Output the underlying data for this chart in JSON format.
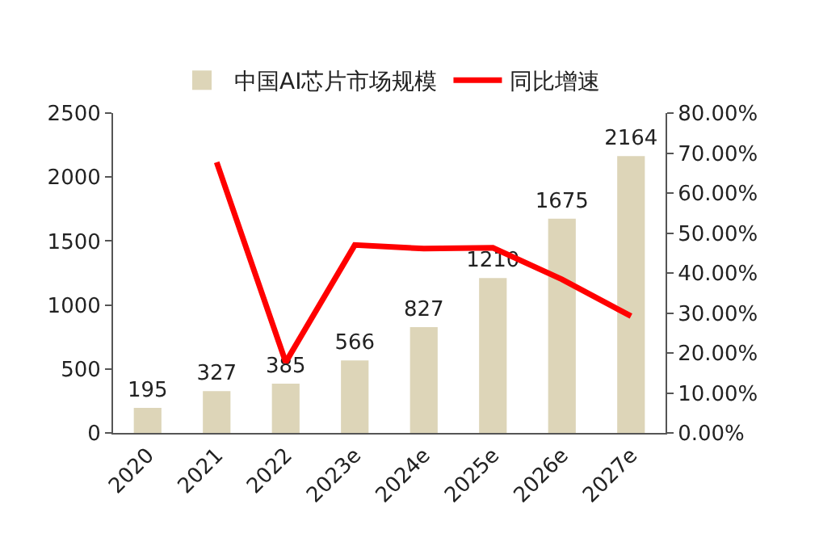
{
  "chart_data": {
    "type": "bar",
    "categories": [
      "2020",
      "2021",
      "2022",
      "2023e",
      "2024e",
      "2025e",
      "2026e",
      "2027e"
    ],
    "series": [
      {
        "name": "中国AI芯片市场规模",
        "color": "#ddd5b8",
        "values": [
          195,
          327,
          385,
          566,
          827,
          1210,
          1675,
          2164
        ],
        "value_labels": [
          "195",
          "327",
          "385",
          "566",
          "827",
          "1210",
          "1675",
          "2164"
        ]
      },
      {
        "name": "同比增速",
        "type": "line",
        "axis": "y2",
        "color": "#ff0000",
        "values": [
          null,
          67.7,
          17.7,
          47.0,
          46.1,
          46.3,
          38.4,
          29.2
        ]
      }
    ],
    "ylim": [
      0,
      2500
    ],
    "yticks": [
      0,
      500,
      1000,
      1500,
      2000,
      2500
    ],
    "y2lim": [
      0,
      80
    ],
    "y2ticks": [
      {
        "value": 0,
        "label": "0.00%"
      },
      {
        "value": 10,
        "label": "10.00%"
      },
      {
        "value": 20,
        "label": "20.00%"
      },
      {
        "value": 30,
        "label": "30.00%"
      },
      {
        "value": 40,
        "label": "40.00%"
      },
      {
        "value": 50,
        "label": "50.00%"
      },
      {
        "value": 60,
        "label": "60.00%"
      },
      {
        "value": 70,
        "label": "70.00%"
      },
      {
        "value": 80,
        "label": "80.00%"
      }
    ],
    "grid": false,
    "legend": "top",
    "marker": "none"
  }
}
